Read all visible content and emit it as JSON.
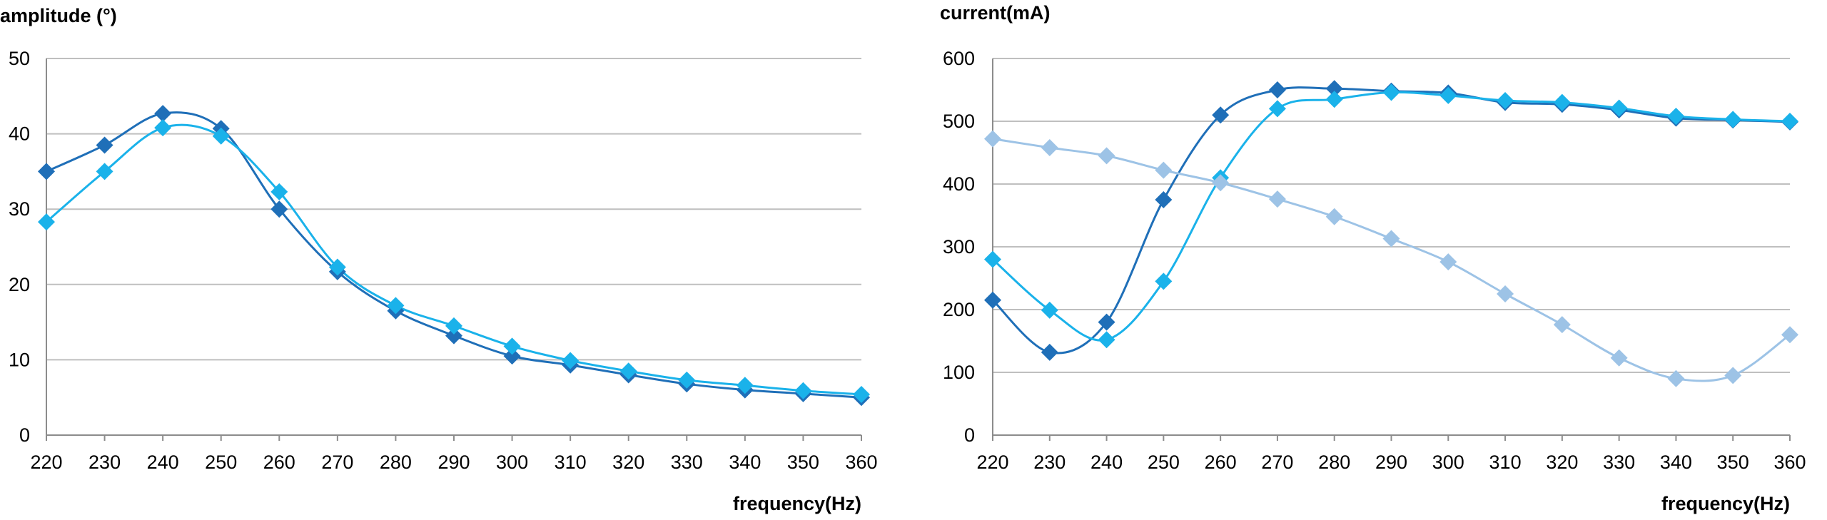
{
  "chart_data": [
    {
      "type": "line",
      "ylabel": "amplitude (°)",
      "xlabel": "frequency(Hz)",
      "x": [
        220,
        230,
        240,
        250,
        260,
        270,
        280,
        290,
        300,
        310,
        320,
        330,
        340,
        350,
        360
      ],
      "xlim": [
        220,
        360
      ],
      "ylim": [
        0,
        50
      ],
      "yticks": [
        0,
        10,
        20,
        30,
        40,
        50
      ],
      "grid": true,
      "series": [
        {
          "color": "#1f6fb8",
          "values": [
            35,
            38.5,
            42.7,
            40.7,
            30,
            21.7,
            16.5,
            13.2,
            10.5,
            9.3,
            8,
            6.8,
            6,
            5.5,
            5
          ]
        },
        {
          "color": "#1ab2ea",
          "values": [
            28.3,
            35,
            40.8,
            39.7,
            32.3,
            22.3,
            17.2,
            14.5,
            11.8,
            9.9,
            8.5,
            7.3,
            6.6,
            5.9,
            5.4
          ]
        }
      ]
    },
    {
      "type": "line",
      "ylabel": "current(mA)",
      "xlabel": "frequency(Hz)",
      "x": [
        220,
        230,
        240,
        250,
        260,
        270,
        280,
        290,
        300,
        310,
        320,
        330,
        340,
        350,
        360
      ],
      "xlim": [
        220,
        360
      ],
      "ylim": [
        0,
        600
      ],
      "yticks": [
        0,
        100,
        200,
        300,
        400,
        500,
        600
      ],
      "grid": true,
      "series": [
        {
          "color": "#1f6fb8",
          "values": [
            215,
            132,
            180,
            375,
            510,
            550,
            552,
            548,
            545,
            530,
            527,
            518,
            505,
            502,
            499
          ]
        },
        {
          "color": "#1ab2ea",
          "values": [
            280,
            199,
            152,
            245,
            410,
            520,
            535,
            546,
            541,
            533,
            530,
            521,
            508,
            503,
            500
          ]
        },
        {
          "color": "#9dc3e6",
          "values": [
            472,
            458,
            445,
            422,
            402,
            376,
            348,
            313,
            276,
            225,
            176,
            123,
            90,
            95,
            160
          ]
        }
      ]
    }
  ]
}
